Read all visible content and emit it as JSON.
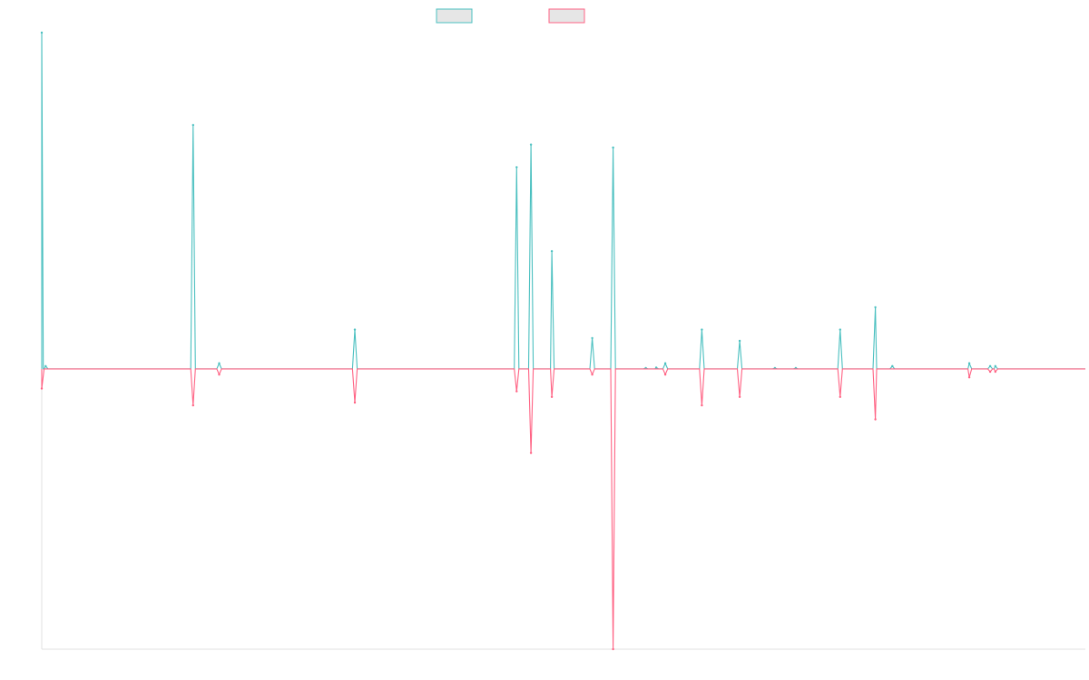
{
  "chart_data": {
    "type": "line",
    "title": "",
    "xlabel": "",
    "ylabel": "",
    "grid": false,
    "legend": "top-center",
    "ylim": [
      -100,
      120
    ],
    "x_count": 81,
    "series": [
      {
        "color": "#4bc0c0",
        "fill": "#e6e6e6",
        "points": [
          [
            0,
            120
          ],
          [
            0.3,
            1
          ],
          [
            11.6,
            87
          ],
          [
            13.6,
            2
          ],
          [
            24,
            14
          ],
          [
            36.4,
            72
          ],
          [
            37.5,
            80
          ],
          [
            39.1,
            42
          ],
          [
            42.2,
            11
          ],
          [
            43.8,
            79
          ],
          [
            46.3,
            0.3
          ],
          [
            47.1,
            0.5
          ],
          [
            47.8,
            2
          ],
          [
            50.6,
            14
          ],
          [
            53.5,
            10
          ],
          [
            56.2,
            0.3
          ],
          [
            57.8,
            0.3
          ],
          [
            61.2,
            14
          ],
          [
            63.9,
            22
          ],
          [
            65.2,
            1
          ],
          [
            71.1,
            2
          ],
          [
            72.7,
            1
          ],
          [
            73.1,
            1
          ]
        ]
      },
      {
        "color": "#ff6384",
        "fill": "#e6e6e6",
        "points": [
          [
            0,
            -7
          ],
          [
            11.6,
            -13
          ],
          [
            13.6,
            -2
          ],
          [
            24,
            -12
          ],
          [
            36.4,
            -8
          ],
          [
            37.5,
            -30
          ],
          [
            39.1,
            -10
          ],
          [
            42.2,
            -2
          ],
          [
            43.8,
            -100
          ],
          [
            47.8,
            -2
          ],
          [
            50.6,
            -13
          ],
          [
            53.5,
            -10
          ],
          [
            61.2,
            -10
          ],
          [
            63.9,
            -18
          ],
          [
            71.1,
            -3
          ],
          [
            72.7,
            -1
          ],
          [
            73.1,
            -1
          ]
        ]
      }
    ]
  }
}
